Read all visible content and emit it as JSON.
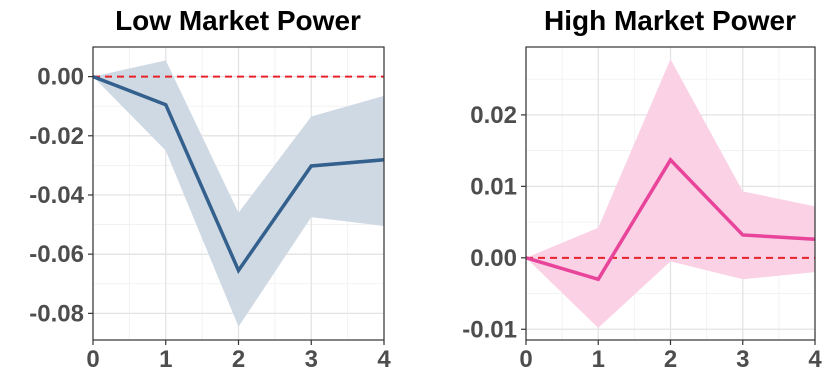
{
  "chart_data": [
    {
      "type": "line",
      "title": "Low Market Power",
      "x": [
        0,
        1,
        2,
        3,
        4
      ],
      "xticks": [
        "0",
        "1",
        "2",
        "3",
        "4"
      ],
      "xlim": [
        0,
        4
      ],
      "yticks": [
        0.0,
        -0.02,
        -0.04,
        -0.06,
        -0.08
      ],
      "ytick_labels": [
        "0.00",
        "-0.02",
        "-0.04",
        "-0.06",
        "-0.08"
      ],
      "ylim": [
        -0.089,
        0.01
      ],
      "series": [
        {
          "values": [
            0.0,
            -0.0095,
            -0.0655,
            -0.0302,
            -0.0281
          ],
          "ci_lower": [
            0.0,
            -0.025,
            -0.0845,
            -0.0475,
            -0.0505
          ],
          "ci_upper": [
            0.0,
            0.0055,
            -0.046,
            -0.0135,
            -0.0065
          ]
        }
      ],
      "reference_line": 0,
      "line_color": "#33608c",
      "band_color": "#cfd9e4",
      "grid": true
    },
    {
      "type": "line",
      "title": "High Market Power",
      "x": [
        0,
        1,
        2,
        3,
        4
      ],
      "xticks": [
        "0",
        "1",
        "2",
        "3",
        "4"
      ],
      "xlim": [
        0,
        4
      ],
      "yticks": [
        0.02,
        0.01,
        0.0,
        -0.01
      ],
      "ytick_labels": [
        "0.02",
        "0.01",
        "0.00",
        "-0.01"
      ],
      "ylim": [
        -0.0115,
        0.0295
      ],
      "series": [
        {
          "values": [
            0.0,
            -0.003,
            0.0137,
            0.0032,
            0.0026
          ],
          "ci_lower": [
            0.0,
            -0.0098,
            -0.0005,
            -0.003,
            -0.002
          ],
          "ci_upper": [
            0.0,
            0.0042,
            0.0278,
            0.0093,
            0.0072
          ]
        }
      ],
      "reference_line": 0,
      "line_color": "#e8449a",
      "band_color": "#fbd1e6",
      "grid": true
    }
  ]
}
